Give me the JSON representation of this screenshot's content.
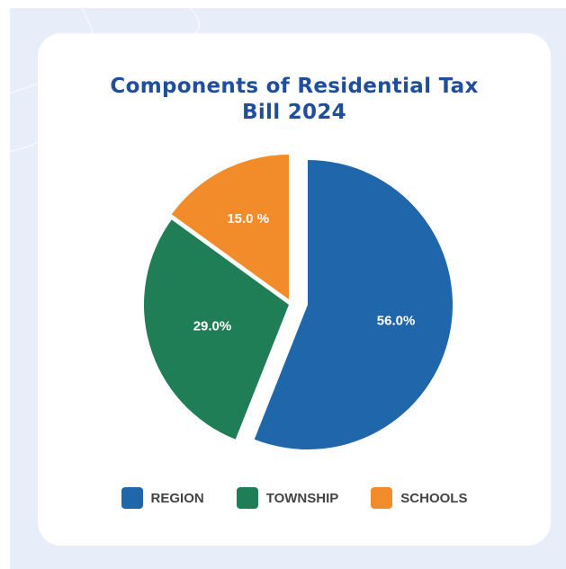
{
  "chart_data": {
    "type": "pie",
    "title_lines": [
      "Components of Residential Tax",
      "Bill 2024"
    ],
    "slices": [
      {
        "name": "REGION",
        "value": 56.0,
        "label": "56.0%",
        "color": "#1f66ab"
      },
      {
        "name": "TOWNSHIP",
        "value": 29.0,
        "label": "29.0%",
        "color": "#1f7e56"
      },
      {
        "name": "SCHOOLS",
        "value": 15.0,
        "label": "15.0 %",
        "color": "#f28c2b"
      }
    ],
    "legend": [
      "REGION",
      "TOWNSHIP",
      "SCHOOLS"
    ],
    "legend_position": "bottom",
    "exploded": [
      "TOWNSHIP",
      "SCHOOLS"
    ]
  },
  "colors": {
    "background": "#e8eef9",
    "card": "#ffffff",
    "title": "#1f4e9c"
  }
}
